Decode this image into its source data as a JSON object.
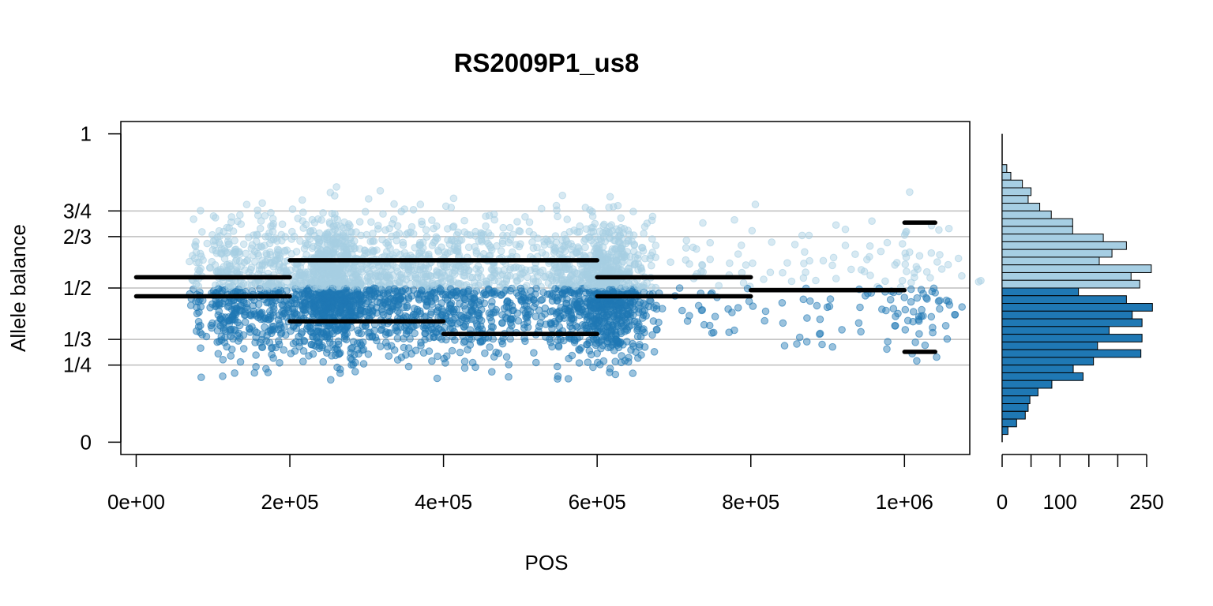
{
  "chart_data": {
    "type": "scatter",
    "title": "RS2009P1_us8",
    "xlabel": "POS",
    "ylabel": "Allele balance",
    "xlim": [
      -20000,
      1085000
    ],
    "ylim": [
      -0.04,
      1.04
    ],
    "x_ticks": [
      {
        "value": 0,
        "label": "0e+00"
      },
      {
        "value": 200000,
        "label": "2e+05"
      },
      {
        "value": 400000,
        "label": "4e+05"
      },
      {
        "value": 600000,
        "label": "6e+05"
      },
      {
        "value": 800000,
        "label": "8e+05"
      },
      {
        "value": 1000000,
        "label": "1e+06"
      }
    ],
    "y_ticks": [
      {
        "value": 0,
        "label": "0"
      },
      {
        "value": 0.25,
        "label": "1/4"
      },
      {
        "value": 0.3333,
        "label": "1/3"
      },
      {
        "value": 0.5,
        "label": "1/2"
      },
      {
        "value": 0.6667,
        "label": "2/3"
      },
      {
        "value": 0.75,
        "label": "3/4"
      },
      {
        "value": 1,
        "label": "1"
      }
    ],
    "gridlines": [
      0.25,
      0.3333,
      0.5,
      0.6667,
      0.75
    ],
    "colors": {
      "upper_points": "#a6cee3",
      "lower_points": "#1f78b4",
      "segments": "#000000",
      "gridline": "#bebebe"
    },
    "point_clusters": [
      {
        "x": 80000,
        "x_spread": 5000,
        "n": 50
      },
      {
        "x": 105000,
        "x_spread": 5000,
        "n": 45
      },
      {
        "x": 125000,
        "x_spread": 12000,
        "n": 220
      },
      {
        "x": 170000,
        "x_spread": 12000,
        "n": 190
      },
      {
        "x": 220000,
        "x_spread": 22000,
        "n": 320
      },
      {
        "x": 258000,
        "x_spread": 16000,
        "n": 460
      },
      {
        "x": 300000,
        "x_spread": 32000,
        "n": 430
      },
      {
        "x": 375000,
        "x_spread": 30000,
        "n": 300
      },
      {
        "x": 430000,
        "x_spread": 30000,
        "n": 260
      },
      {
        "x": 500000,
        "x_spread": 30000,
        "n": 240
      },
      {
        "x": 560000,
        "x_spread": 12000,
        "n": 200
      },
      {
        "x": 600000,
        "x_spread": 14000,
        "n": 330
      },
      {
        "x": 625000,
        "x_spread": 18000,
        "n": 380
      },
      {
        "x": 660000,
        "x_spread": 12000,
        "n": 80
      },
      {
        "x": 750000,
        "x_spread": 50000,
        "n": 55
      },
      {
        "x": 900000,
        "x_spread": 90000,
        "n": 85
      },
      {
        "x": 1020000,
        "x_spread": 25000,
        "n": 75
      }
    ],
    "segments": [
      {
        "x0": 0,
        "x1": 200000,
        "y": 0.535
      },
      {
        "x0": 0,
        "x1": 200000,
        "y": 0.473
      },
      {
        "x0": 200000,
        "x1": 600000,
        "y": 0.59
      },
      {
        "x0": 200000,
        "x1": 400000,
        "y": 0.392
      },
      {
        "x0": 400000,
        "x1": 600000,
        "y": 0.351
      },
      {
        "x0": 600000,
        "x1": 800000,
        "y": 0.535
      },
      {
        "x0": 600000,
        "x1": 800000,
        "y": 0.473
      },
      {
        "x0": 800000,
        "x1": 1000000,
        "y": 0.493
      },
      {
        "x0": 1000000,
        "x1": 1040000,
        "y": 0.712
      },
      {
        "x0": 1000000,
        "x1": 1040000,
        "y": 0.293
      }
    ],
    "histogram": {
      "orientation": "horizontal",
      "bin_width": 0.025,
      "xlim": [
        0,
        250
      ],
      "x_ticks": [
        0,
        50,
        100,
        150,
        200,
        250
      ],
      "x_tick_labels": [
        {
          "value": 0,
          "label": "0"
        },
        {
          "value": 100,
          "label": "100"
        },
        {
          "value": 250,
          "label": "250"
        }
      ],
      "bins": [
        {
          "y0": 0.875,
          "count": 8
        },
        {
          "y0": 0.85,
          "count": 15
        },
        {
          "y0": 0.825,
          "count": 35
        },
        {
          "y0": 0.8,
          "count": 50
        },
        {
          "y0": 0.775,
          "count": 45
        },
        {
          "y0": 0.75,
          "count": 65
        },
        {
          "y0": 0.725,
          "count": 85
        },
        {
          "y0": 0.7,
          "count": 122
        },
        {
          "y0": 0.675,
          "count": 122
        },
        {
          "y0": 0.65,
          "count": 175
        },
        {
          "y0": 0.625,
          "count": 215
        },
        {
          "y0": 0.6,
          "count": 190
        },
        {
          "y0": 0.575,
          "count": 168
        },
        {
          "y0": 0.55,
          "count": 258
        },
        {
          "y0": 0.525,
          "count": 223
        },
        {
          "y0": 0.5,
          "count": 238
        },
        {
          "y0": 0.475,
          "count": 132
        },
        {
          "y0": 0.45,
          "count": 215
        },
        {
          "y0": 0.425,
          "count": 260
        },
        {
          "y0": 0.4,
          "count": 225
        },
        {
          "y0": 0.375,
          "count": 242
        },
        {
          "y0": 0.35,
          "count": 185
        },
        {
          "y0": 0.325,
          "count": 242
        },
        {
          "y0": 0.3,
          "count": 165
        },
        {
          "y0": 0.275,
          "count": 240
        },
        {
          "y0": 0.25,
          "count": 158
        },
        {
          "y0": 0.225,
          "count": 123
        },
        {
          "y0": 0.2,
          "count": 140
        },
        {
          "y0": 0.175,
          "count": 86
        },
        {
          "y0": 0.15,
          "count": 62
        },
        {
          "y0": 0.125,
          "count": 48
        },
        {
          "y0": 0.1,
          "count": 45
        },
        {
          "y0": 0.075,
          "count": 40
        },
        {
          "y0": 0.05,
          "count": 25
        },
        {
          "y0": 0.025,
          "count": 10
        }
      ]
    }
  }
}
